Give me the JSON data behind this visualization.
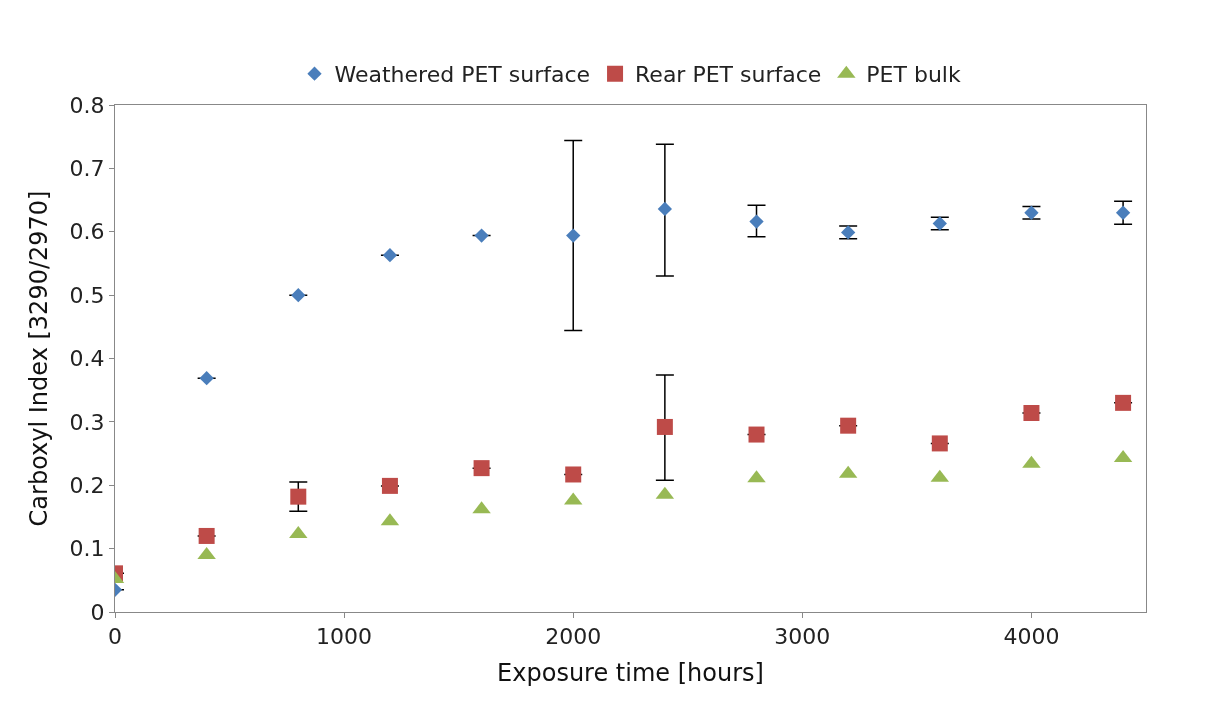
{
  "chart_data": {
    "type": "scatter",
    "xlabel": "Exposure time [hours]",
    "ylabel": "Carboxyl Index [3290/2970]",
    "x": [
      0,
      400,
      800,
      1200,
      1600,
      2000,
      2400,
      2800,
      3200,
      3600,
      4000,
      4400
    ],
    "series": [
      {
        "name": "Weathered PET surface",
        "color": "#4a7ebb",
        "marker": "diamond",
        "values": [
          0.035,
          0.369,
          0.5,
          0.563,
          0.594,
          0.594,
          0.636,
          0.616,
          0.599,
          0.613,
          0.63,
          0.63
        ],
        "errors": [
          null,
          null,
          null,
          null,
          null,
          0.15,
          [
            0.53,
            0.738
          ],
          [
            0.592,
            0.642
          ],
          0.01,
          0.01,
          0.01,
          0.018
        ]
      },
      {
        "name": "Rear PET surface",
        "color": "#be4b48",
        "marker": "square",
        "values": [
          0.061,
          0.12,
          0.182,
          0.199,
          0.227,
          0.217,
          0.292,
          0.28,
          0.294,
          0.266,
          0.314,
          0.33
        ],
        "errors": [
          null,
          null,
          [
            0.159,
            0.205
          ],
          null,
          null,
          null,
          [
            0.208,
            0.374
          ],
          null,
          null,
          null,
          null,
          null
        ]
      },
      {
        "name": "PET bulk",
        "color": "#98b954",
        "marker": "triangle",
        "values": [
          0.052,
          0.09,
          0.123,
          0.143,
          0.162,
          0.176,
          0.185,
          0.211,
          0.218,
          0.212,
          0.234,
          0.243
        ]
      }
    ],
    "xlim": [
      0,
      4500
    ],
    "xticks": [
      0,
      1000,
      2000,
      3000,
      4000
    ],
    "ylim": [
      0,
      0.8
    ],
    "yticks": [
      {
        "value": 0,
        "label": "0"
      },
      0.1,
      0.2,
      0.3,
      0.4,
      0.5,
      0.6,
      0.7,
      0.8
    ],
    "grid": false,
    "legend": "top"
  }
}
